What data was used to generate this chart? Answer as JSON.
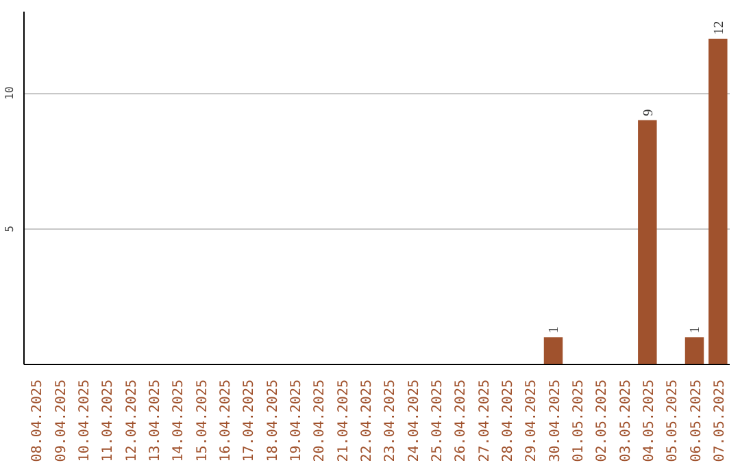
{
  "chart_data": {
    "type": "bar",
    "categories": [
      "08.04.2025",
      "09.04.2025",
      "10.04.2025",
      "11.04.2025",
      "12.04.2025",
      "13.04.2025",
      "14.04.2025",
      "15.04.2025",
      "16.04.2025",
      "17.04.2025",
      "18.04.2025",
      "19.04.2025",
      "20.04.2025",
      "21.04.2025",
      "22.04.2025",
      "23.04.2025",
      "24.04.2025",
      "25.04.2025",
      "26.04.2025",
      "27.04.2025",
      "28.04.2025",
      "29.04.2025",
      "30.04.2025",
      "01.05.2025",
      "02.05.2025",
      "03.05.2025",
      "04.05.2025",
      "05.05.2025",
      "06.05.2025",
      "07.05.2025"
    ],
    "values": [
      0,
      0,
      0,
      0,
      0,
      0,
      0,
      0,
      0,
      0,
      0,
      0,
      0,
      0,
      0,
      0,
      0,
      0,
      0,
      0,
      0,
      0,
      1,
      0,
      0,
      0,
      9,
      0,
      1,
      12
    ],
    "value_labels": [
      null,
      null,
      null,
      null,
      null,
      null,
      null,
      null,
      null,
      null,
      null,
      null,
      null,
      null,
      null,
      null,
      null,
      null,
      null,
      null,
      null,
      null,
      "1",
      null,
      null,
      null,
      "9",
      null,
      "1",
      "12"
    ],
    "color": "#a0522d",
    "ylim": [
      0,
      13
    ],
    "yticks": [
      5,
      10
    ],
    "grid": "y"
  }
}
